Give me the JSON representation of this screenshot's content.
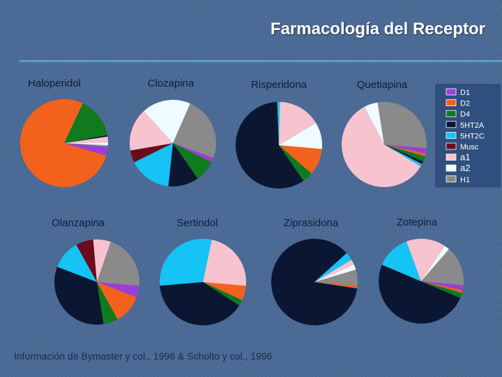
{
  "slide": {
    "title": "Farmacología del Receptor",
    "source": "Información de Bymaster y col., 1996 & Scholto y col., 1996"
  },
  "chart_data": {
    "type": "pie",
    "legend_position": "right",
    "legend": [
      {
        "label": "D1",
        "color": "#9a3fd6"
      },
      {
        "label": "D2",
        "color": "#f2621c"
      },
      {
        "label": "D4",
        "color": "#0f7a1e"
      },
      {
        "label": "5HT2A",
        "color": "#0b1633"
      },
      {
        "label": "5HT2C",
        "color": "#15c3f4"
      },
      {
        "label": "Musc",
        "color": "#6a0c1c"
      },
      {
        "label": "a1",
        "color": "#f7c3ce"
      },
      {
        "label": "a2",
        "color": "#eefbff"
      },
      {
        "label": "H1",
        "color": "#8a8a8a"
      }
    ],
    "charts": [
      {
        "drug": "Haloperidol",
        "values": {
          "D1": 3,
          "D2": 72,
          "D4": 14,
          "5HT2A": 0.5,
          "5HT2C": 0,
          "Musc": 0,
          "a1": 2,
          "a2": 1,
          "H1": 0.5
        }
      },
      {
        "drug": "Clozapina",
        "values": {
          "D1": 1.5,
          "D2": 0,
          "D4": 7,
          "5HT2A": 10,
          "5HT2C": 14,
          "Musc": 4,
          "a1": 14,
          "a2": 16,
          "H1": 21
        }
      },
      {
        "drug": "Risperidona",
        "values": {
          "D1": 0,
          "D2": 10,
          "D4": 4,
          "5HT2A": 59,
          "5HT2C": 1,
          "Musc": 0,
          "a1": 16,
          "a2": 10,
          "H1": 0
        }
      },
      {
        "drug": "Quetiapina",
        "values": {
          "D1": 2,
          "D2": 1,
          "D4": 2,
          "5HT2A": 1,
          "5HT2C": 1,
          "Musc": 0,
          "a1": 57,
          "a2": 5,
          "H1": 28
        }
      },
      {
        "drug": "Olanzapina",
        "values": {
          "D1": 4,
          "D2": 10,
          "D4": 5,
          "5HT2A": 30,
          "5HT2C": 10,
          "Musc": 6,
          "a1": 6,
          "a2": 0,
          "H1": 19
        }
      },
      {
        "drug": "Sertindol",
        "values": {
          "D1": 0,
          "D2": 5,
          "D4": 2,
          "5HT2A": 36,
          "5HT2C": 27,
          "Musc": 0,
          "a1": 21,
          "a2": 0,
          "H1": 0
        }
      },
      {
        "drug": "Ziprasidona",
        "values": {
          "D1": 0,
          "D2": 1,
          "D4": 0,
          "5HT2A": 86,
          "5HT2C": 3,
          "Musc": 0,
          "a1": 2,
          "a2": 2,
          "H1": 6
        }
      },
      {
        "drug": "Zotepina",
        "values": {
          "D1": 2,
          "D2": 1,
          "D4": 2,
          "5HT2A": 50,
          "5HT2C": 13,
          "Musc": 0,
          "a1": 15,
          "a2": 2,
          "H1": 15
        }
      }
    ]
  }
}
